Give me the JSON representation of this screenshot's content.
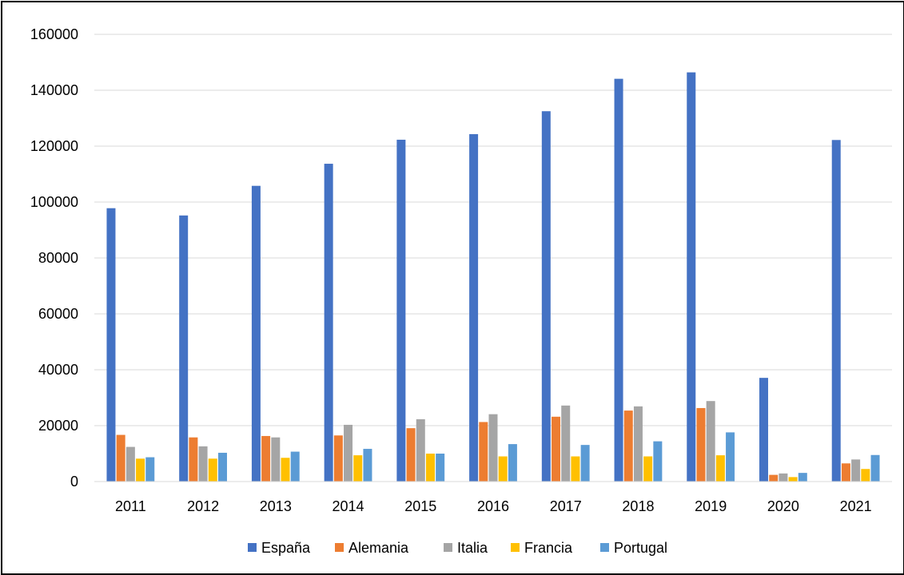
{
  "chart_data": {
    "type": "bar",
    "title": "",
    "xlabel": "",
    "ylabel": "",
    "categories": [
      "2011",
      "2012",
      "2013",
      "2014",
      "2015",
      "2016",
      "2017",
      "2018",
      "2019",
      "2020",
      "2021"
    ],
    "ylim": [
      0,
      160000
    ],
    "yticks": [
      "0",
      "20000",
      "40000",
      "60000",
      "80000",
      "100000",
      "120000",
      "140000",
      "160000"
    ],
    "grid": true,
    "legend_position": "bottom",
    "series": [
      {
        "name": "España",
        "color": "#4472C4",
        "values": [
          97800,
          95200,
          105800,
          113700,
          122300,
          124300,
          132500,
          144100,
          146400,
          37100,
          122200
        ]
      },
      {
        "name": "Alemania",
        "color": "#ED7D31",
        "values": [
          16700,
          15800,
          16300,
          16500,
          19100,
          21300,
          23200,
          25400,
          26300,
          2400,
          6500
        ]
      },
      {
        "name": "Italia",
        "color": "#A5A5A5",
        "values": [
          12400,
          12600,
          15800,
          20300,
          22300,
          24100,
          27200,
          26900,
          28800,
          2900,
          7900
        ]
      },
      {
        "name": "Francia",
        "color": "#FFC000",
        "values": [
          8200,
          8200,
          8500,
          9400,
          10000,
          9000,
          9000,
          9000,
          9400,
          1600,
          4500
        ]
      },
      {
        "name": "Portugal",
        "color": "#5B9BD5",
        "values": [
          8700,
          10300,
          10700,
          11700,
          10000,
          13400,
          13100,
          14400,
          17600,
          3100,
          9500
        ]
      }
    ]
  }
}
